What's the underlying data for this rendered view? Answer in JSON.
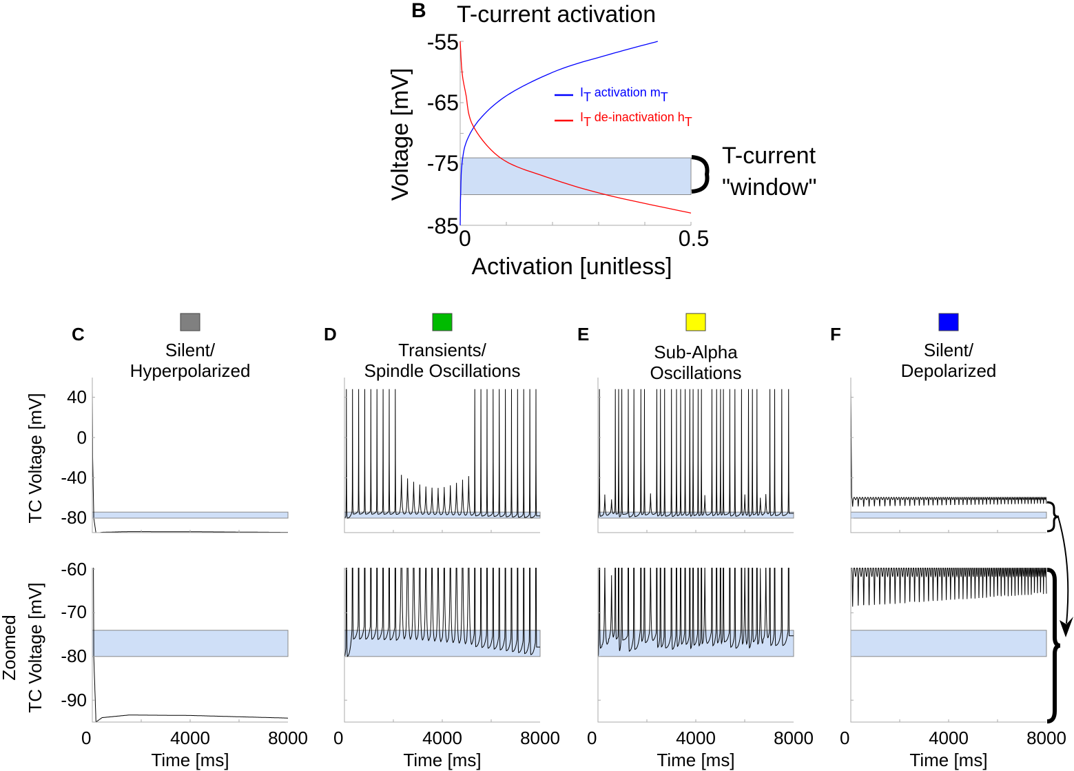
{
  "chart_data": [
    {
      "type": "line",
      "panel_letter": "B",
      "title": "T-current activation",
      "xlabel": "Activation [unitless]",
      "ylabel": "Voltage [mV]",
      "xlim": [
        0,
        0.5
      ],
      "ylim": [
        -85,
        -55
      ],
      "xticks": [
        "0",
        "0.5"
      ],
      "yticks": [
        "-55",
        "-65",
        "-75",
        "-85"
      ],
      "window_mV": [
        -80,
        -74
      ],
      "window_label": [
        "T-current",
        "\"window\""
      ],
      "legend_position": "top-right",
      "series": [
        {
          "name_parts": [
            "I",
            "T",
            " activation m",
            "T"
          ],
          "color": "#0000ff",
          "points": [
            [
              0.0,
              -85
            ],
            [
              0.001,
              -80
            ],
            [
              0.004,
              -74.9
            ],
            [
              0.015,
              -71.1
            ],
            [
              0.047,
              -67.3
            ],
            [
              0.108,
              -63.5
            ],
            [
              0.212,
              -59.7
            ],
            [
              0.32,
              -57.2
            ],
            [
              0.428,
              -55
            ]
          ]
        },
        {
          "name_parts": [
            "I",
            "T",
            " de-inactivation h",
            "T"
          ],
          "color": "#ff0000",
          "points": [
            [
              0.0,
              -55
            ],
            [
              0.004,
              -60
            ],
            [
              0.012,
              -63.5
            ],
            [
              0.028,
              -68.8
            ],
            [
              0.089,
              -74.1
            ],
            [
              0.186,
              -77.1
            ],
            [
              0.315,
              -80
            ],
            [
              0.5,
              -83
            ]
          ]
        }
      ]
    },
    {
      "type": "line",
      "panel_letter": "C",
      "title": [
        "Silent/",
        "Hyperpolarized"
      ],
      "swatch_color": "#808080",
      "kind": "points",
      "points": [
        [
          0,
          48
        ],
        [
          15,
          -20
        ],
        [
          60,
          -80
        ],
        [
          150,
          -95
        ],
        [
          400,
          -94
        ],
        [
          1500,
          -93.4
        ],
        [
          4000,
          -93.5
        ],
        [
          8000,
          -94.1
        ]
      ]
    },
    {
      "type": "line",
      "panel_letter": "D",
      "title": [
        "Transients/",
        "Spindle Oscillations"
      ],
      "swatch_color": "#00bb00",
      "kind": "events",
      "first_event_ms": 80,
      "interval_ms": 250,
      "count": 32,
      "spike_before_ms": 2200,
      "spike_after_ms": 5300,
      "subthreshold_peak_mV": [
        -35,
        -50
      ],
      "trough_mV": [
        -76,
        -80
      ]
    },
    {
      "type": "line",
      "panel_letter": "E",
      "title": [
        "Sub-Alpha",
        "Oscillations"
      ],
      "swatch_color": "#ffff00",
      "kind": "random_events",
      "min_interval_ms": 120,
      "max_interval_ms": 300,
      "spike_probability": 0.85,
      "trough_mV": [
        -79,
        -76
      ]
    },
    {
      "type": "line",
      "panel_letter": "F",
      "title": [
        "Silent/",
        "Depolarized"
      ],
      "swatch_color": "#0000ff",
      "kind": "depolarized",
      "rest_mV": -60.5,
      "dip_depth_mV": [
        7,
        4
      ],
      "dip_period_ms": [
        230,
        120
      ]
    }
  ],
  "shared": {
    "xlim": [
      0,
      8000
    ],
    "xticks": [
      "0",
      "4000",
      "8000"
    ],
    "xlabel": "Time [ms]",
    "top_row": {
      "ylabel": "TC Voltage [mV]",
      "ylim": [
        -94.5,
        59
      ],
      "yticks": [
        "40",
        "0",
        "-40",
        "-80"
      ],
      "ytick_values": [
        40,
        0,
        -40,
        -80
      ]
    },
    "zoom_row": {
      "ylabel": [
        "Zoomed",
        "TC Voltage [mV]"
      ],
      "ylim": [
        -95,
        -60
      ],
      "yticks": [
        "-60",
        "-70",
        "-80",
        "-90"
      ],
      "ytick_values": [
        -60,
        -70,
        -80,
        -90
      ]
    },
    "window_mV": [
      -80,
      -74
    ],
    "window_color": "#cfdff7"
  }
}
